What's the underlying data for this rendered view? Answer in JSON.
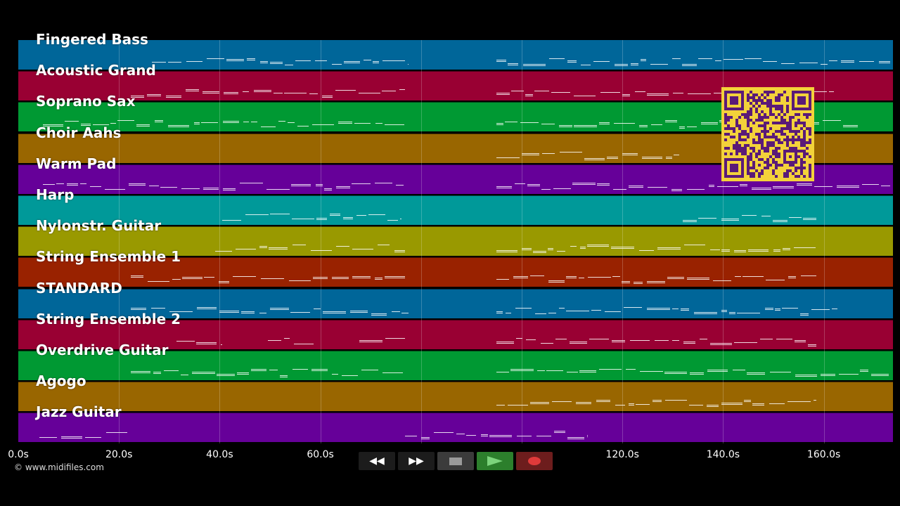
{
  "tracks": [
    {
      "name": "Fingered Bass",
      "color": "#006699"
    },
    {
      "name": "Acoustic Grand",
      "color": "#990033"
    },
    {
      "name": "Soprano Sax",
      "color": "#009933"
    },
    {
      "name": "Choir Aahs",
      "color": "#996600"
    },
    {
      "name": "Warm Pad",
      "color": "#660099"
    },
    {
      "name": "Harp",
      "color": "#009999"
    },
    {
      "name": "Nylonstr. Guitar",
      "color": "#999900"
    },
    {
      "name": "String Ensemble 1",
      "color": "#992200"
    },
    {
      "name": "STANDARD",
      "color": "#006699"
    },
    {
      "name": "String Ensemble 2",
      "color": "#990033"
    },
    {
      "name": "Overdrive Guitar",
      "color": "#009933"
    },
    {
      "name": "Agogo",
      "color": "#996600"
    },
    {
      "name": "Jazz Guitar",
      "color": "#660099"
    }
  ],
  "timeline": {
    "ticks": [
      {
        "label": "0.0s",
        "seconds": 0
      },
      {
        "label": "20.0s",
        "seconds": 20
      },
      {
        "label": "40.0s",
        "seconds": 40
      },
      {
        "label": "60.0s",
        "seconds": 60
      },
      {
        "label": "120.0s",
        "seconds": 120
      },
      {
        "label": "140.0s",
        "seconds": 140
      },
      {
        "label": "160.0s",
        "seconds": 160
      }
    ],
    "gridlines_seconds": [
      20,
      40,
      60,
      80,
      100,
      120,
      140,
      160
    ],
    "duration_seconds": 174
  },
  "copyright": "© www.midifiles.com",
  "controls": {
    "rewind": "◀◀",
    "fast_forward": "▶▶"
  },
  "icons": {
    "rewind": "rewind-icon",
    "fast_forward": "fast-forward-icon",
    "stop": "stop-icon",
    "play": "play-icon",
    "record": "record-icon",
    "qr": "qr-code-icon"
  }
}
